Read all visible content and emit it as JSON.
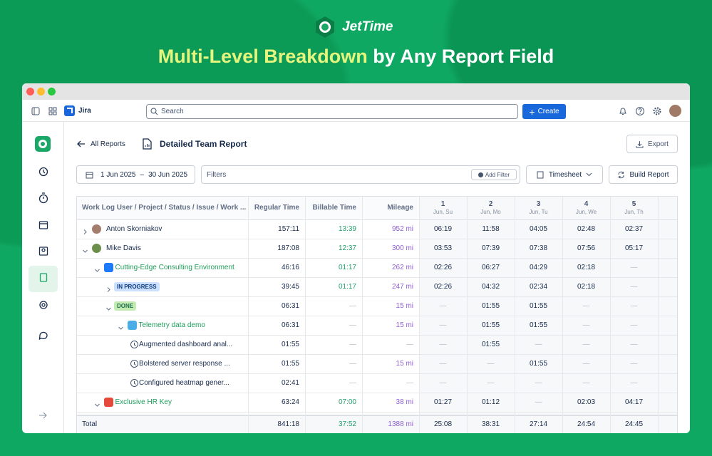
{
  "brand": "JetTime",
  "headline": {
    "highlight": "Multi-Level Breakdown",
    "rest": "by Any Report Field"
  },
  "topbar": {
    "app": "Jira",
    "search": "Search",
    "create": "Create"
  },
  "page": {
    "back": "All Reports",
    "title": "Detailed Team Report",
    "export": "Export"
  },
  "filters": {
    "date_from": "1 Jun 2025",
    "date_sep": "–",
    "date_to": "30 Jun 2025",
    "filters": "Filters",
    "add_filter": "Add Filter",
    "view": "Timesheet",
    "build": "Build Report"
  },
  "table": {
    "columns": [
      "Work Log User / Project / Status / Issue / Work ...",
      "Regular Time",
      "Billable Time",
      "Mileage"
    ],
    "days": [
      {
        "day": "1",
        "label": "Jun, Su"
      },
      {
        "day": "2",
        "label": "Jun, Mo"
      },
      {
        "day": "3",
        "label": "Jun, Tu"
      },
      {
        "day": "4",
        "label": "Jun, We"
      },
      {
        "day": "5",
        "label": "Jun, Th"
      }
    ],
    "rows": [
      {
        "label": "Anton Skorniakov",
        "level": 0,
        "type": "user",
        "expanded": false,
        "cells": [
          "157:11",
          "13:39",
          "952 mi",
          "06:19",
          "11:58",
          "04:05",
          "02:48",
          "02:37"
        ]
      },
      {
        "label": "Mike Davis",
        "level": 0,
        "type": "user",
        "expanded": true,
        "cells": [
          "187:08",
          "12:37",
          "300 mi",
          "03:53",
          "07:39",
          "07:38",
          "07:56",
          "05:17"
        ]
      },
      {
        "label": "Cutting-Edge Consulting Environment",
        "level": 1,
        "type": "project",
        "expanded": true,
        "color": "#1d7afc",
        "cells": [
          "46:16",
          "01:17",
          "262 mi",
          "02:26",
          "06:27",
          "04:29",
          "02:18",
          "—"
        ]
      },
      {
        "label": "IN PROGRESS",
        "level": 2,
        "type": "status",
        "expanded": false,
        "color": "#cce0ff",
        "cells": [
          "39:45",
          "01:17",
          "247 mi",
          "02:26",
          "04:32",
          "02:34",
          "02:18",
          "—"
        ]
      },
      {
        "label": "DONE",
        "level": 2,
        "type": "status",
        "expanded": true,
        "color": "#c3ecb2",
        "cells": [
          "06:31",
          "—",
          "15 mi",
          "—",
          "01:55",
          "01:55",
          "—",
          "—"
        ]
      },
      {
        "label": "Telemetry data demo",
        "level": 3,
        "type": "issue",
        "expanded": true,
        "color": "#4bade8",
        "cells": [
          "06:31",
          "—",
          "15 mi",
          "—",
          "01:55",
          "01:55",
          "—",
          "—"
        ]
      },
      {
        "label": "Augmented dashboard anal...",
        "level": 4,
        "type": "worklog",
        "cells": [
          "01:55",
          "—",
          "—",
          "—",
          "01:55",
          "—",
          "—",
          "—"
        ]
      },
      {
        "label": "Bolstered server response ...",
        "level": 4,
        "type": "worklog",
        "cells": [
          "01:55",
          "—",
          "15 mi",
          "—",
          "—",
          "01:55",
          "—",
          "—"
        ]
      },
      {
        "label": "Configured heatmap gener...",
        "level": 4,
        "type": "worklog",
        "cells": [
          "02:41",
          "—",
          "—",
          "—",
          "—",
          "—",
          "—",
          "—"
        ]
      },
      {
        "label": "Exclusive HR Key",
        "level": 1,
        "type": "project",
        "expanded": true,
        "color": "#e5493a",
        "cells": [
          "63:24",
          "07:00",
          "38 mi",
          "01:27",
          "01:12",
          "—",
          "02:03",
          "04:17"
        ]
      }
    ],
    "total": {
      "label": "Total",
      "cells": [
        "841:18",
        "37:52",
        "1388 mi",
        "25:08",
        "38:31",
        "27:14",
        "24:54",
        "24:45"
      ]
    }
  }
}
